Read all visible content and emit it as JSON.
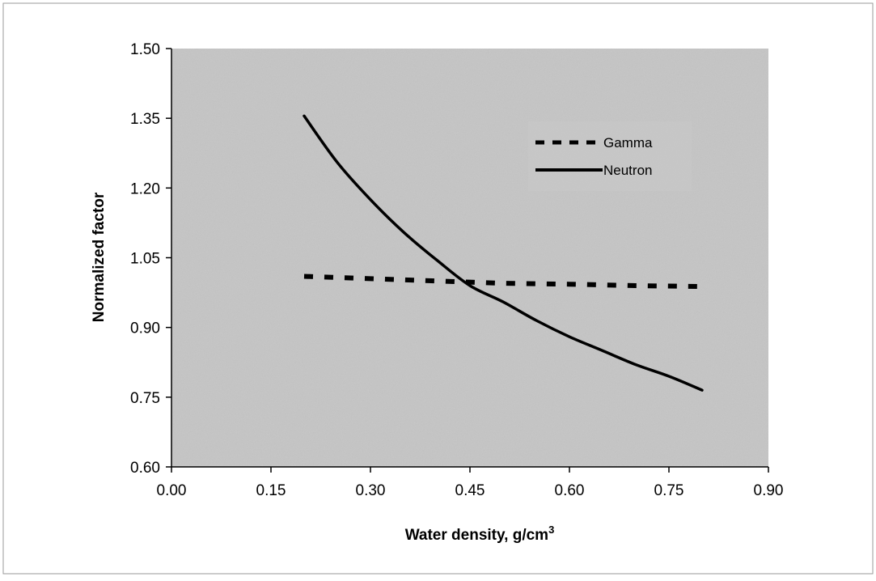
{
  "chart_data": {
    "type": "line",
    "title": "",
    "xlabel": "Water density, g/cm",
    "xlabel_superscript": "3",
    "ylabel": "Normalized factor",
    "xlim": [
      0.0,
      0.9
    ],
    "ylim": [
      0.6,
      1.5
    ],
    "xticks": [
      "0.00",
      "0.15",
      "0.30",
      "0.45",
      "0.60",
      "0.75",
      "0.90"
    ],
    "yticks": [
      "0.60",
      "0.75",
      "0.90",
      "1.05",
      "1.20",
      "1.35",
      "1.50"
    ],
    "grid": false,
    "legend_position": "top-right",
    "series": [
      {
        "name": "Gamma",
        "style": "dashed",
        "color": "#000000",
        "x": [
          0.2,
          0.3,
          0.4,
          0.5,
          0.6,
          0.7,
          0.8
        ],
        "y": [
          1.01,
          1.005,
          1.0,
          0.995,
          0.993,
          0.99,
          0.988
        ]
      },
      {
        "name": "Neutron",
        "style": "solid",
        "color": "#000000",
        "x": [
          0.2,
          0.25,
          0.3,
          0.35,
          0.4,
          0.45,
          0.5,
          0.55,
          0.6,
          0.65,
          0.7,
          0.75,
          0.8
        ],
        "y": [
          1.355,
          1.255,
          1.175,
          1.105,
          1.045,
          0.99,
          0.955,
          0.915,
          0.88,
          0.85,
          0.82,
          0.795,
          0.765
        ]
      }
    ]
  },
  "colors": {
    "plot_background": "#c8c8c8",
    "frame": "#000000"
  }
}
